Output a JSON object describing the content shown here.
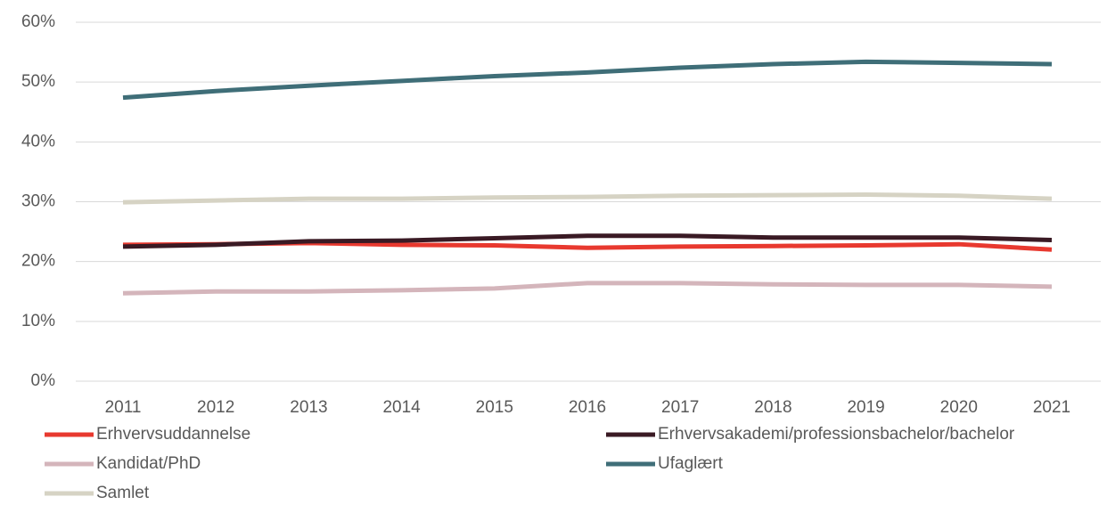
{
  "chart_data": {
    "type": "line",
    "categories": [
      "2011",
      "2012",
      "2013",
      "2014",
      "2015",
      "2016",
      "2017",
      "2018",
      "2019",
      "2020",
      "2021"
    ],
    "series": [
      {
        "name": "Erhvervsuddannelse",
        "color": "#e8392f",
        "values": [
          22.8,
          22.9,
          23.1,
          22.8,
          22.7,
          22.3,
          22.5,
          22.6,
          22.7,
          22.9,
          22.0
        ]
      },
      {
        "name": "Erhvervsakademi/professionsbachelor/bachelor",
        "color": "#3a1a24",
        "values": [
          22.5,
          22.8,
          23.4,
          23.5,
          23.9,
          24.3,
          24.3,
          24.0,
          24.0,
          24.0,
          23.6
        ]
      },
      {
        "name": "Kandidat/PhD",
        "color": "#d4b5bb",
        "values": [
          14.7,
          15.0,
          15.0,
          15.2,
          15.5,
          16.4,
          16.4,
          16.2,
          16.1,
          16.1,
          15.8
        ]
      },
      {
        "name": "Ufaglært",
        "color": "#3f6e78",
        "values": [
          47.4,
          48.5,
          49.4,
          50.2,
          51.0,
          51.6,
          52.4,
          53.0,
          53.4,
          53.2,
          53.0
        ]
      },
      {
        "name": "Samlet",
        "color": "#d6d3c4",
        "values": [
          29.9,
          30.2,
          30.5,
          30.5,
          30.7,
          30.8,
          31.0,
          31.1,
          31.2,
          31.0,
          30.5
        ]
      }
    ],
    "ylim": [
      0,
      60
    ],
    "yticks": [
      {
        "value": 0,
        "label": "0%"
      },
      {
        "value": 10,
        "label": "10%"
      },
      {
        "value": 20,
        "label": "20%"
      },
      {
        "value": 30,
        "label": "30%"
      },
      {
        "value": 40,
        "label": "40%"
      },
      {
        "value": 50,
        "label": "50%"
      },
      {
        "value": 60,
        "label": "60%"
      }
    ],
    "grid": true,
    "legend": "bottom"
  }
}
